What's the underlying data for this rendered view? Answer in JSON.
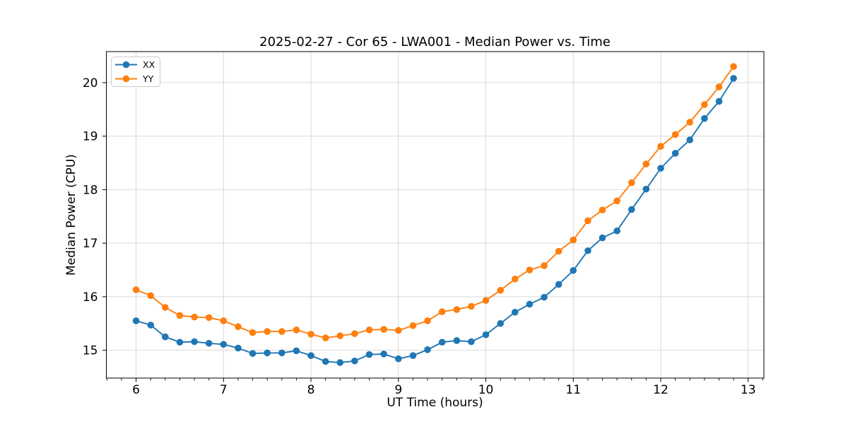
{
  "chart_data": {
    "type": "line",
    "title": "2025-02-27 - Cor 65 - LWA001 - Median Power vs. Time",
    "xlabel": "UT Time (hours)",
    "ylabel": "Median Power (CPU)",
    "xlim": [
      5.66,
      13.18
    ],
    "ylim": [
      14.48,
      20.58
    ],
    "x_major_ticks": [
      6,
      7,
      8,
      9,
      10,
      11,
      12,
      13
    ],
    "y_major_ticks": [
      15,
      16,
      17,
      18,
      19,
      20
    ],
    "x_minor_divisions": 6,
    "grid": true,
    "legend_position": "upper-left",
    "x": [
      6.0,
      6.167,
      6.333,
      6.5,
      6.667,
      6.833,
      7.0,
      7.167,
      7.333,
      7.5,
      7.667,
      7.833,
      8.0,
      8.167,
      8.333,
      8.5,
      8.667,
      8.833,
      9.0,
      9.167,
      9.333,
      9.5,
      9.667,
      9.833,
      10.0,
      10.167,
      10.333,
      10.5,
      10.667,
      10.833,
      11.0,
      11.167,
      11.333,
      11.5,
      11.667,
      11.833,
      12.0,
      12.167,
      12.333,
      12.5,
      12.667,
      12.833
    ],
    "series": [
      {
        "name": "XX",
        "color": "#1f77b4",
        "values": [
          15.55,
          15.47,
          15.25,
          15.15,
          15.16,
          15.13,
          15.11,
          15.04,
          14.94,
          14.95,
          14.95,
          14.99,
          14.9,
          14.79,
          14.77,
          14.8,
          14.92,
          14.93,
          14.84,
          14.9,
          15.01,
          15.15,
          15.18,
          15.16,
          15.29,
          15.5,
          15.71,
          15.86,
          15.99,
          16.23,
          16.49,
          16.86,
          17.1,
          17.23,
          17.63,
          18.01,
          18.4,
          18.68,
          18.93,
          19.33,
          19.65,
          20.08
        ]
      },
      {
        "name": "YY",
        "color": "#ff7f0e",
        "values": [
          16.13,
          16.02,
          15.8,
          15.65,
          15.62,
          15.61,
          15.55,
          15.44,
          15.33,
          15.35,
          15.35,
          15.38,
          15.3,
          15.23,
          15.27,
          15.31,
          15.38,
          15.39,
          15.37,
          15.46,
          15.55,
          15.72,
          15.76,
          15.82,
          15.93,
          16.12,
          16.33,
          16.5,
          16.58,
          16.85,
          17.06,
          17.42,
          17.62,
          17.79,
          18.13,
          18.48,
          18.81,
          19.03,
          19.26,
          19.59,
          19.92,
          20.3
        ]
      }
    ]
  },
  "colors": {
    "grid": "#d9d9d9",
    "spine": "#000000",
    "legend_border": "#cccccc",
    "background": "#ffffff"
  }
}
